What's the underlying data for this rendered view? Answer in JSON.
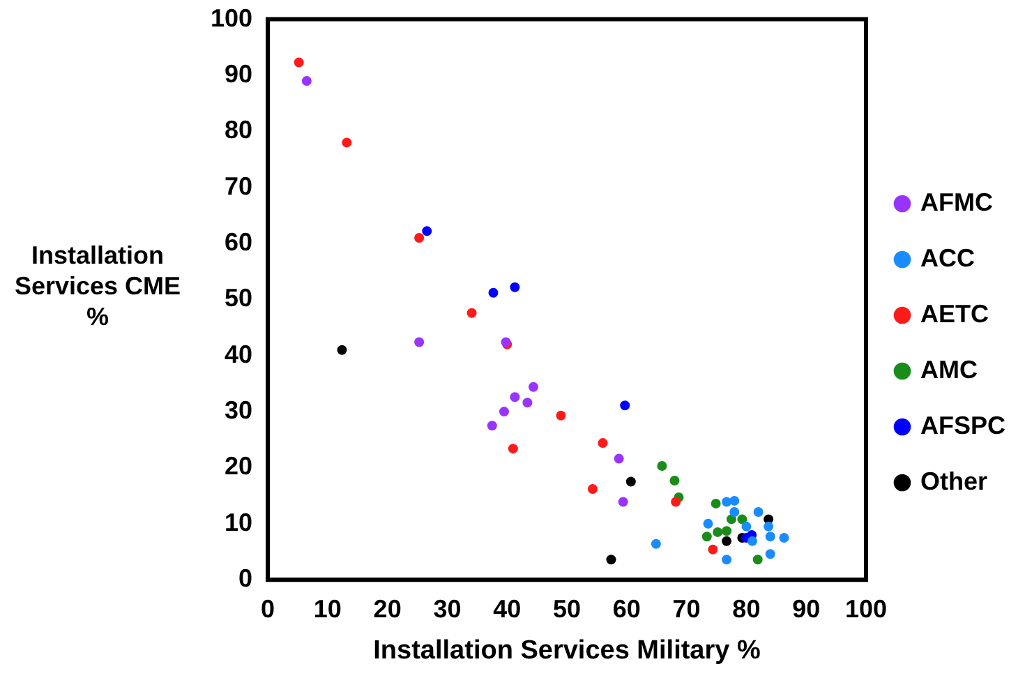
{
  "chart_data": {
    "type": "scatter",
    "xlabel": "Installation Services Military %",
    "ylabel": "Installation Services CME %",
    "xlim": [
      0,
      100
    ],
    "ylim": [
      0,
      100
    ],
    "xticks": [
      0,
      10,
      20,
      30,
      40,
      50,
      60,
      70,
      80,
      90,
      100
    ],
    "yticks": [
      0,
      10,
      20,
      30,
      40,
      50,
      60,
      70,
      80,
      90,
      100
    ],
    "grid": false,
    "legend": "right",
    "marker": "circle",
    "series": [
      {
        "name": "AFMC",
        "color": "#9933ff",
        "x": [
          6.5,
          25.3,
          39.8,
          37.5,
          39.5,
          41.3,
          43.4,
          44.4,
          58.7,
          59.4
        ],
        "values": [
          89,
          42.4,
          42.4,
          27.5,
          30,
          32.6,
          31.6,
          34.4,
          21.6,
          13.9
        ]
      },
      {
        "name": "ACC",
        "color": "#1a8cff",
        "x": [
          64.9,
          76.7,
          76.7,
          78,
          78,
          82,
          73.6,
          83.7,
          84,
          86.3,
          84,
          81,
          80
        ],
        "values": [
          6.4,
          3.6,
          13.9,
          14.1,
          12.1,
          12.1,
          10,
          9.5,
          7.7,
          7.5,
          4.6,
          6.9,
          9.5
        ]
      },
      {
        "name": "AETC",
        "color": "#ff1a1a",
        "x": [
          5.2,
          13.2,
          25.3,
          34.1,
          40,
          41,
          49,
          56,
          54.3,
          68.2,
          74.4
        ],
        "values": [
          92.3,
          78,
          61,
          47.6,
          42,
          23.4,
          29.3,
          24.4,
          16.2,
          13.9,
          5.4
        ]
      },
      {
        "name": "AMC",
        "color": "#1a8c1a",
        "x": [
          65.9,
          68,
          68.7,
          74.9,
          73.4,
          75.2,
          77.5,
          79.3,
          81.9,
          76.7
        ],
        "values": [
          20.3,
          17.7,
          14.7,
          13.6,
          7.7,
          8.5,
          10.8,
          10.8,
          3.6,
          8.7
        ]
      },
      {
        "name": "AFSPC",
        "color": "#0000ff",
        "x": [
          26.6,
          37.7,
          41.3,
          59.7,
          80,
          80.9
        ],
        "values": [
          62.2,
          51.2,
          52.2,
          31.1,
          7.5,
          8
        ]
      },
      {
        "name": "Other",
        "color": "#000000",
        "x": [
          12.4,
          60.7,
          57.4,
          83.7,
          76.7,
          79.3
        ],
        "values": [
          41,
          17.5,
          3.6,
          10.8,
          6.9,
          7.5
        ]
      }
    ]
  }
}
